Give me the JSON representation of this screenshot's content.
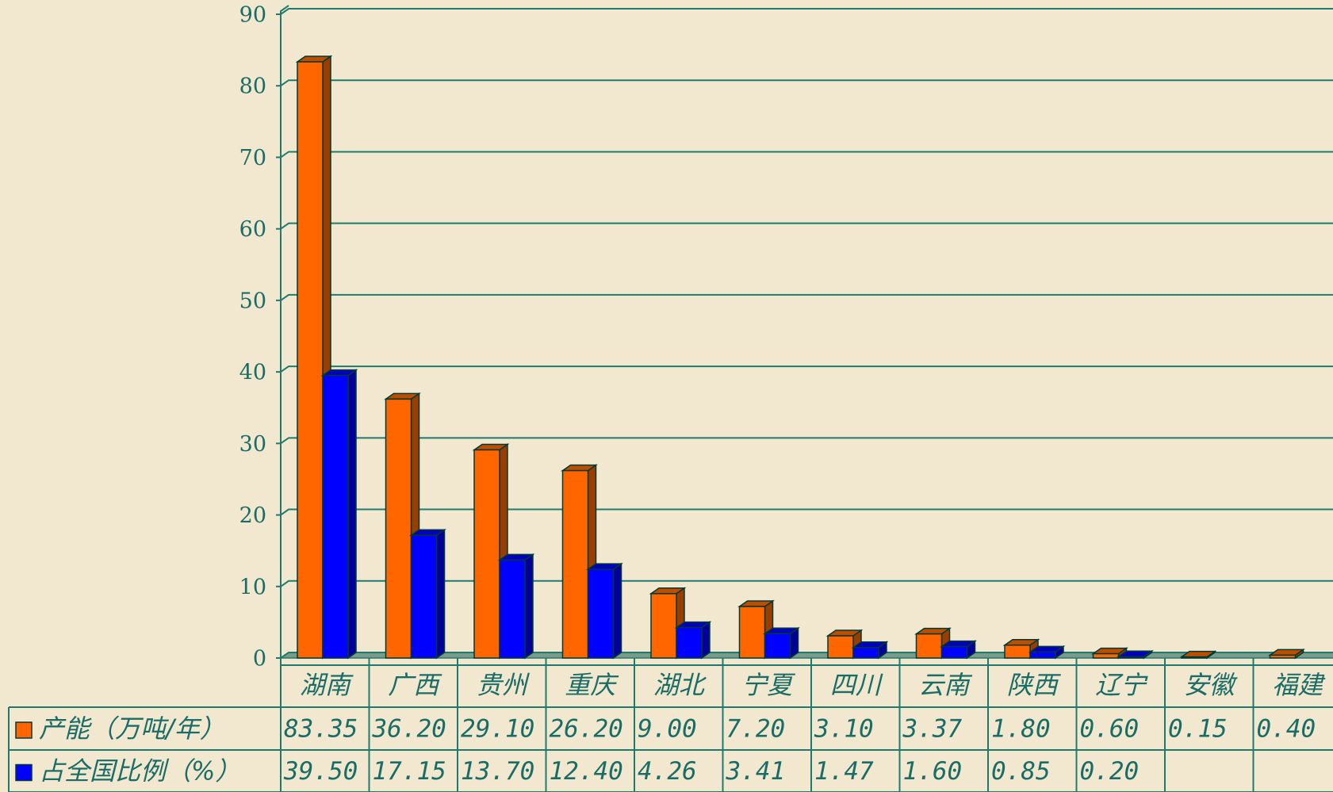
{
  "chart_data": {
    "type": "bar3d",
    "categories": [
      "湖南",
      "广西",
      "贵州",
      "重庆",
      "湖北",
      "宁夏",
      "四川",
      "云南",
      "陕西",
      "辽宁",
      "安徽",
      "福建"
    ],
    "series": [
      {
        "name": "产能（万吨/年）",
        "color": "#ff6600",
        "values": [
          83.35,
          36.2,
          29.1,
          26.2,
          9.0,
          7.2,
          3.1,
          3.37,
          1.8,
          0.6,
          0.15,
          0.4
        ],
        "value_labels": [
          "83.35",
          "36.20",
          "29.10",
          "26.20",
          "9.00",
          "7.20",
          "3.10",
          "3.37",
          "1.80",
          "0.60",
          "0.15",
          "0.40"
        ]
      },
      {
        "name": "占全国比例（%）",
        "color": "#0000ff",
        "values": [
          39.5,
          17.15,
          13.7,
          12.4,
          4.26,
          3.41,
          1.47,
          1.6,
          0.85,
          0.2,
          null,
          null
        ],
        "value_labels": [
          "39.50",
          "17.15",
          "13.70",
          "12.40",
          "4.26",
          "3.41",
          "1.47",
          "1.60",
          "0.85",
          "0.20",
          null,
          null
        ]
      }
    ],
    "ylim": [
      0,
      90
    ],
    "yticks": [
      0,
      10,
      20,
      30,
      40,
      50,
      60,
      70,
      80,
      90
    ],
    "grid": true
  }
}
